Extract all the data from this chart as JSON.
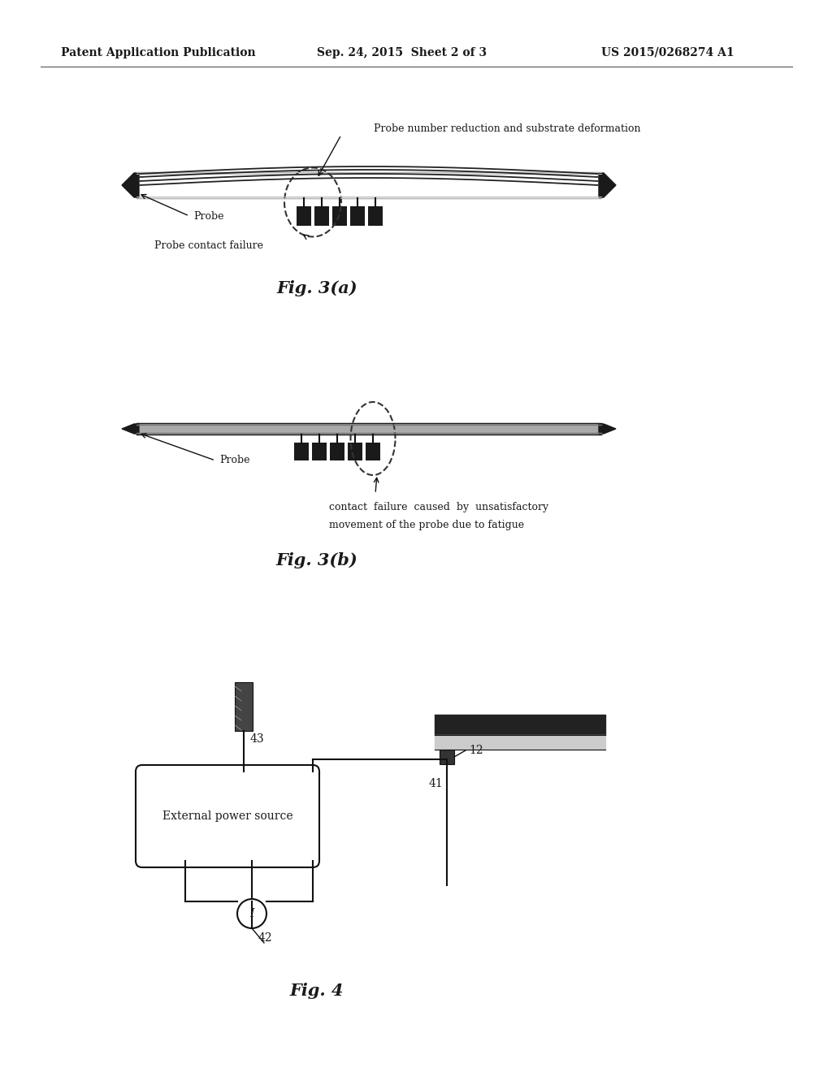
{
  "header_left": "Patent Application Publication",
  "header_center": "Sep. 24, 2015  Sheet 2 of 3",
  "header_right": "US 2015/0268274 A1",
  "fig3a_label": "Fig. 3(a)",
  "fig3b_label": "Fig. 3(b)",
  "fig4_label": "Fig. 4",
  "fig3a_annotation1": "Probe number reduction and substrate deformation",
  "fig3a_annotation2": "Probe contact failure",
  "fig3a_probe_label": "Probe",
  "fig3b_probe_label": "Probe",
  "fig3b_annotation_line1": "contact  failure  caused  by  unsatisfactory",
  "fig3b_annotation_line2": "movement of the probe due to fatigue",
  "fig4_box_label": "External power source",
  "fig4_label_43": "43",
  "fig4_label_42": "42",
  "fig4_label_41": "41",
  "fig4_label_12": "12",
  "bg_color": "#ffffff",
  "dark": "#1a1a1a",
  "gray": "#888888",
  "mid": "#444444",
  "line_color": "#111111"
}
